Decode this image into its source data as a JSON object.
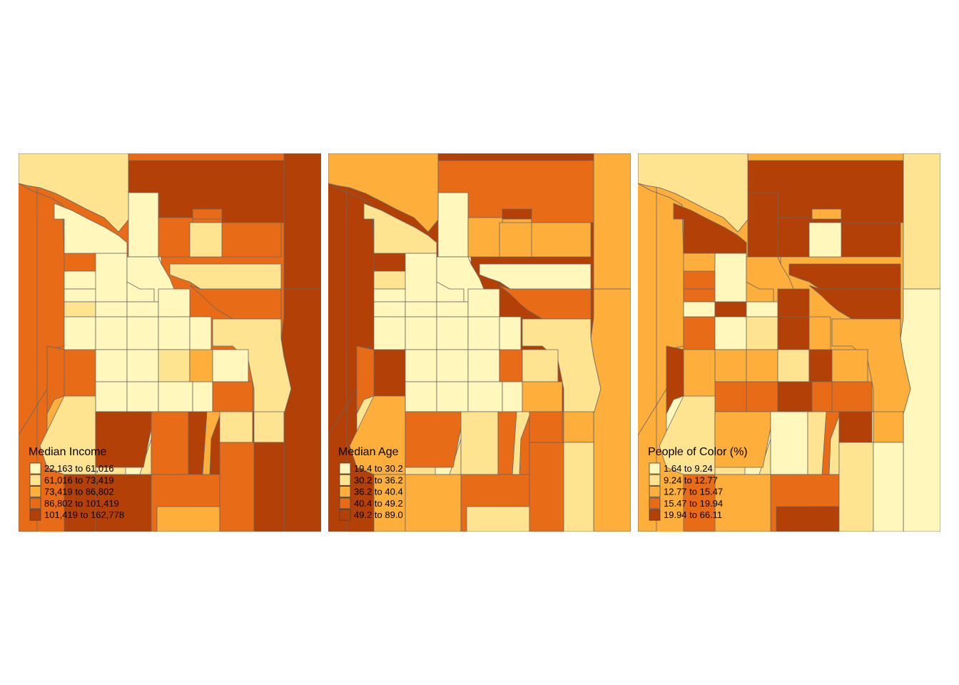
{
  "palette": [
    "#fff7bc",
    "#fee391",
    "#fdae3b",
    "#e86b17",
    "#b34007"
  ],
  "border_color": "#666666",
  "panels": [
    {
      "id": "income",
      "legend": {
        "title": "Median Income",
        "classes": [
          "22,163 to 61,016",
          "61,016 to 73,419",
          "73,419 to 86,802",
          "86,802 to 101,419",
          "101,419 to 162,778"
        ]
      },
      "tracts": [
        3,
        1,
        4,
        3,
        4,
        0,
        0,
        3,
        1,
        0,
        0,
        0,
        1,
        4,
        4,
        0,
        0,
        0,
        1,
        0,
        0,
        0,
        0,
        0,
        3,
        0,
        0,
        0,
        0,
        1,
        0,
        1,
        2,
        0,
        0,
        0,
        0,
        0,
        3,
        2,
        3,
        1,
        1,
        0,
        4,
        3,
        4,
        2,
        1,
        1,
        2,
        4,
        4,
        3,
        4,
        3,
        2,
        3,
        4
      ]
    },
    {
      "id": "age",
      "legend": {
        "title": "Median Age",
        "classes": [
          "19.4 to 30.2",
          "30.2 to 36.2",
          "36.2 to 40.4",
          "40.4 to 49.2",
          "49.2 to 89.0"
        ]
      },
      "tracts": [
        4,
        2,
        2,
        2,
        3,
        1,
        0,
        2,
        2,
        1,
        0,
        0,
        0,
        2,
        3,
        0,
        0,
        0,
        0,
        0,
        0,
        0,
        0,
        0,
        3,
        0,
        0,
        0,
        0,
        0,
        0,
        1,
        3,
        1,
        0,
        0,
        0,
        0,
        2,
        1,
        3,
        2,
        1,
        0,
        3,
        1,
        3,
        1,
        3,
        2,
        2,
        2,
        4,
        3,
        2,
        1,
        1,
        3,
        1
      ]
    },
    {
      "id": "poc",
      "legend": {
        "title": "People of Color (%)",
        "classes": [
          "1.64 to 9.24",
          "9.24 to 12.77",
          "12.77 to 15.47",
          "15.47 to 19.94",
          "19.94 to 66.11"
        ]
      },
      "tracts": [
        2,
        1,
        1,
        4,
        4,
        4,
        4,
        4,
        0,
        3,
        3,
        0,
        0,
        0,
        0,
        0,
        2,
        2,
        4,
        4,
        0,
        4,
        3,
        0,
        4,
        1,
        4,
        2,
        2,
        1,
        2,
        2,
        4,
        2,
        3,
        3,
        4,
        3,
        3,
        0,
        4,
        1,
        1,
        0,
        2,
        0,
        1,
        3,
        4,
        2,
        3,
        3,
        3,
        3,
        2,
        1,
        4,
        1,
        0
      ]
    }
  ]
}
